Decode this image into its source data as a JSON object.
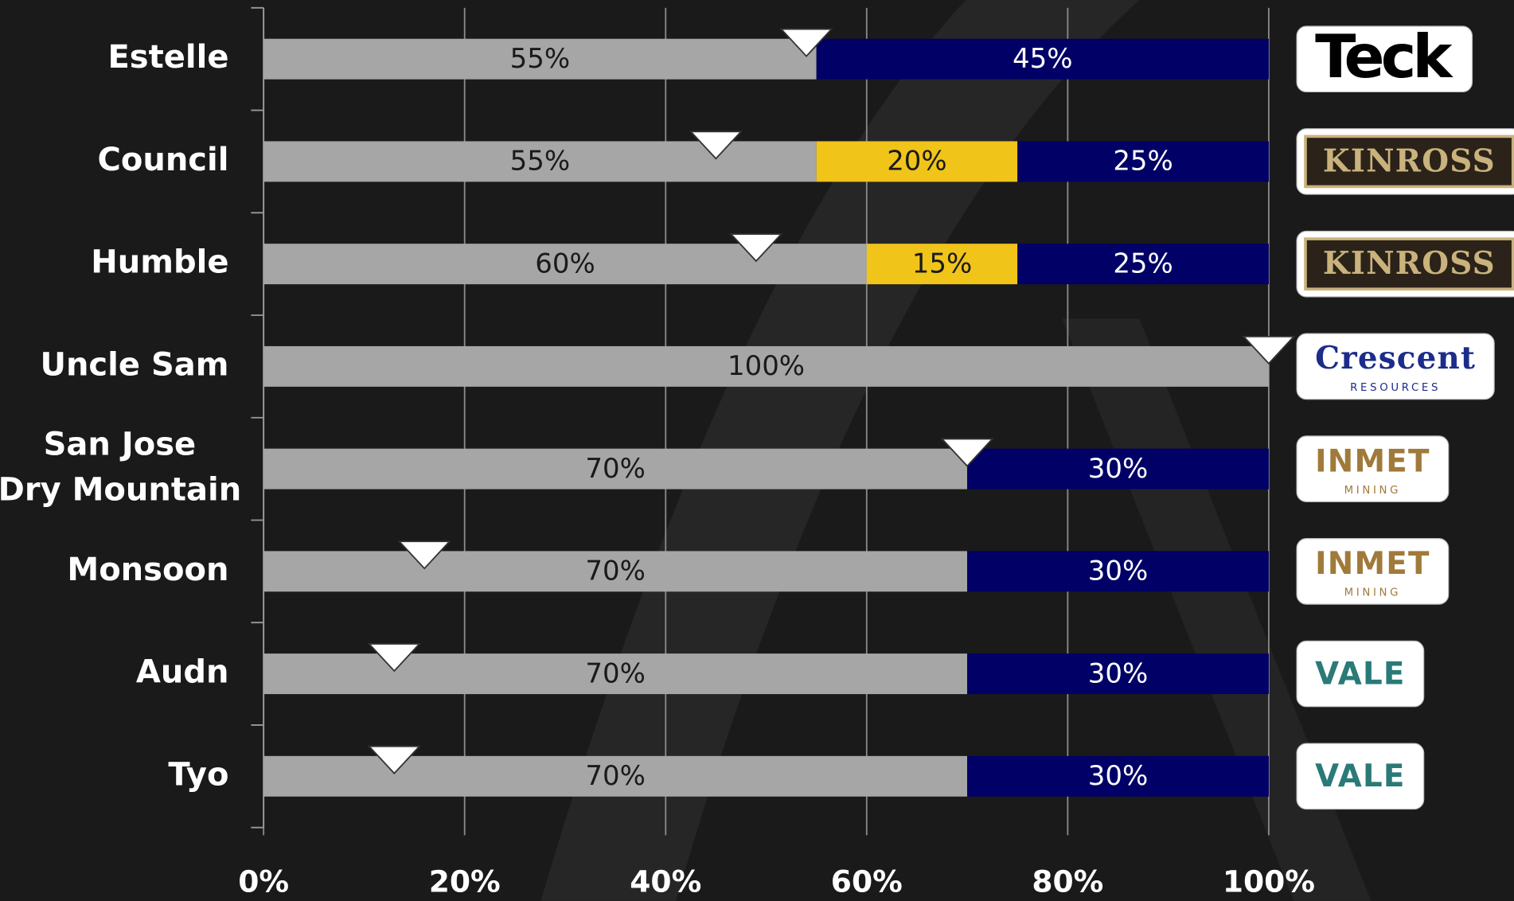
{
  "chart_data": {
    "type": "stacked-barh",
    "categories": [
      "Estelle",
      "Council",
      "Humble",
      "Uncle Sam",
      "San Jose\nDry Mountain",
      "Monsoon",
      "Audn",
      "Tyo"
    ],
    "series": [
      {
        "color": "#a6a6a6",
        "values": [
          55,
          55,
          60,
          100,
          70,
          70,
          70,
          70
        ],
        "value_labels": [
          "55%",
          "55%",
          "60%",
          "100%",
          "70%",
          "70%",
          "70%",
          "70%"
        ]
      },
      {
        "color": "#f0c419",
        "values": [
          null,
          20,
          15,
          null,
          null,
          null,
          null,
          null
        ],
        "value_labels": [
          null,
          "20%",
          "15%",
          null,
          null,
          null,
          null,
          null
        ]
      },
      {
        "color": "#000066",
        "values": [
          45,
          25,
          25,
          null,
          30,
          30,
          30,
          30
        ],
        "value_labels": [
          "45%",
          "25%",
          "25%",
          null,
          "30%",
          "30%",
          "30%",
          "30%"
        ]
      }
    ],
    "markers": [
      54,
      45,
      49,
      100,
      70,
      16,
      13,
      13
    ],
    "xlim": [
      0,
      100
    ],
    "xticks": [
      {
        "value": 0,
        "label": "0%"
      },
      {
        "value": 20,
        "label": "20%"
      },
      {
        "value": 40,
        "label": "40%"
      },
      {
        "value": 60,
        "label": "60%"
      },
      {
        "value": 80,
        "label": "80%"
      },
      {
        "value": 100,
        "label": "100%"
      }
    ],
    "grid": true,
    "logos": [
      {
        "text": "Teck",
        "color": "#000000"
      },
      {
        "text": "KINROSS",
        "color": "#c9b27c",
        "background": "#2b2219"
      },
      {
        "text": "KINROSS",
        "color": "#c9b27c",
        "background": "#2b2219"
      },
      {
        "text": "Crescent",
        "sub": "RESOURCES",
        "color": "#1c2c8c"
      },
      {
        "text": "INMET",
        "sub": "MINING",
        "color": "#a07a3a"
      },
      {
        "text": "INMET",
        "sub": "MINING",
        "color": "#a07a3a"
      },
      {
        "text": "VALE",
        "color": "#2a7a78"
      },
      {
        "text": "VALE",
        "color": "#2a7a78"
      }
    ]
  }
}
